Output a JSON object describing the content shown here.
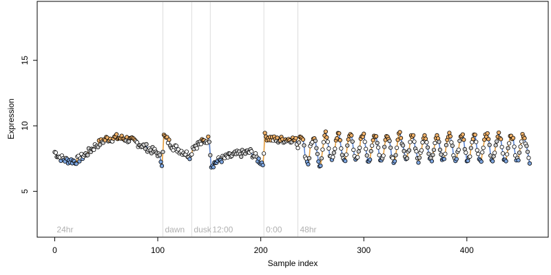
{
  "chart_data": {
    "type": "scatter",
    "title": "",
    "xlabel": "Sample index",
    "ylabel": "Expression",
    "xlim": [
      -17,
      479
    ],
    "ylim": [
      1.5,
      19.5
    ],
    "x_ticks": [
      0,
      100,
      200,
      300,
      400
    ],
    "y_ticks": [
      5,
      10,
      15
    ],
    "grid": false,
    "legend": "none",
    "colors": {
      "point_fill_low": "#7ea6e0",
      "point_fill_high": "#f2b36b",
      "point_stroke": "#000000",
      "line": "#a8a8a8",
      "line_up": "#e8a040",
      "line_down": "#5b86d6",
      "separator": "#dcdcdc",
      "segment_label": "#b0b0b0"
    },
    "segments": [
      {
        "label": "24hr",
        "start": 0
      },
      {
        "label": "dawn",
        "start": 105
      },
      {
        "label": "dusk",
        "start": 133
      },
      {
        "label": "12:00",
        "start": 151
      },
      {
        "label": "0:00",
        "start": 203
      },
      {
        "label": "48hr",
        "start": 236
      }
    ],
    "separators": [
      105,
      133,
      151,
      203,
      236
    ],
    "generator": {
      "n_points": 462,
      "y_min": 6.5,
      "y_max": 9.9
    },
    "anchors": {
      "x": [
        0,
        5,
        10,
        20,
        30,
        40,
        50,
        60,
        70,
        80,
        90,
        100,
        104,
        106,
        115,
        125,
        132,
        134,
        142,
        150,
        152,
        160,
        175,
        190,
        202,
        204,
        215,
        230,
        235
      ],
      "y": [
        8.0,
        7.6,
        7.4,
        7.3,
        7.8,
        8.5,
        9.0,
        9.1,
        9.0,
        8.7,
        8.3,
        7.9,
        7.2,
        9.2,
        8.4,
        8.0,
        7.7,
        8.4,
        8.7,
        9.0,
        7.0,
        7.4,
        7.8,
        8.0,
        7.1,
        9.2,
        8.9,
        9.0,
        8.8
      ]
    }
  }
}
